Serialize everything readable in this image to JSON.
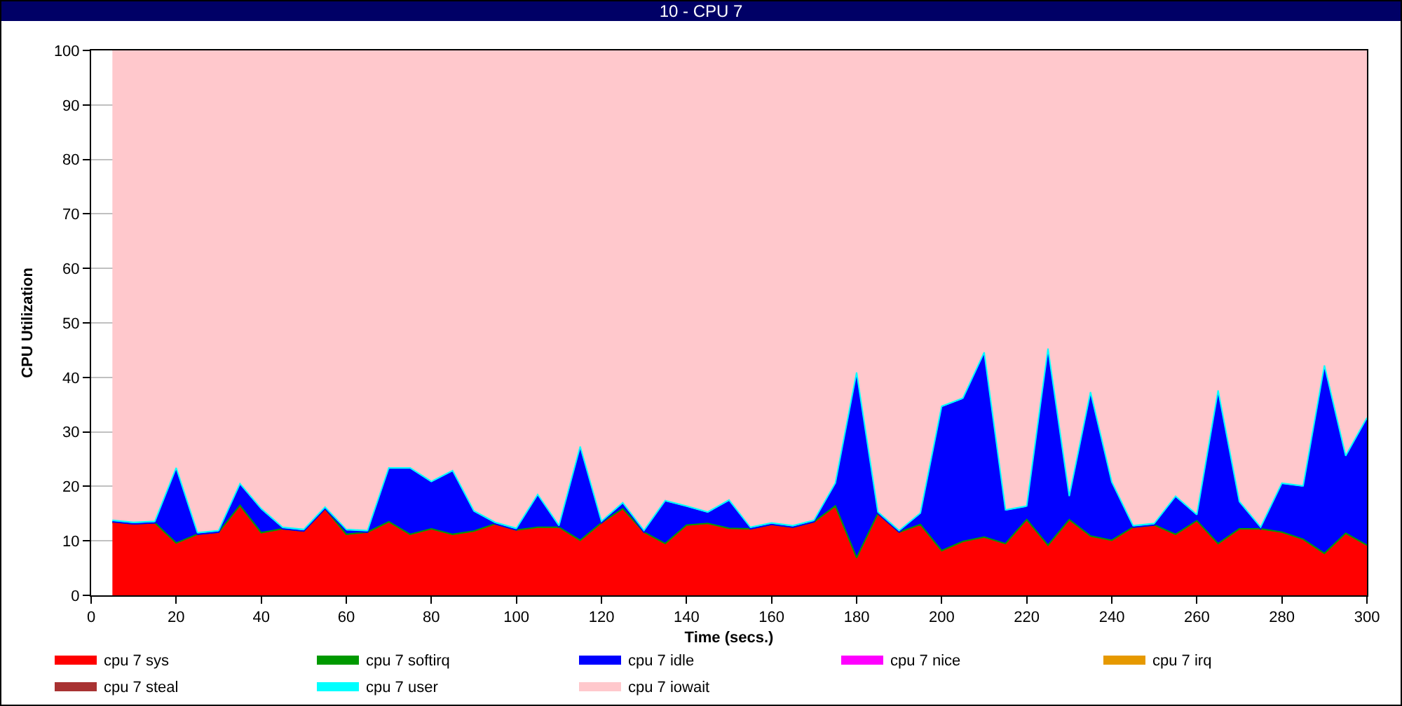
{
  "chart_data": {
    "type": "area",
    "title": "10 - CPU 7",
    "xlabel": "Time (secs.)",
    "ylabel": "CPU Utilization",
    "stacked": true,
    "x": [
      5,
      10,
      15,
      20,
      25,
      30,
      35,
      40,
      45,
      50,
      55,
      60,
      65,
      70,
      75,
      80,
      85,
      90,
      95,
      100,
      105,
      110,
      115,
      120,
      125,
      130,
      135,
      140,
      145,
      150,
      155,
      160,
      165,
      170,
      175,
      180,
      185,
      190,
      195,
      200,
      205,
      210,
      215,
      220,
      225,
      230,
      235,
      240,
      245,
      250,
      255,
      260,
      265,
      270,
      275,
      280,
      285,
      290,
      295,
      300
    ],
    "series": [
      {
        "name": "cpu 7 sys",
        "color": "#ff0000",
        "values": [
          13.3,
          12.9,
          13.1,
          9.4,
          11.0,
          11.4,
          16.3,
          11.3,
          12.0,
          11.6,
          15.7,
          11.0,
          11.4,
          13.3,
          11.0,
          12.0,
          11.0,
          11.6,
          12.9,
          11.8,
          12.3,
          12.3,
          9.9,
          13.1,
          15.7,
          11.4,
          9.3,
          12.7,
          13.0,
          12.1,
          12.0,
          12.8,
          12.3,
          13.3,
          16.2,
          6.7,
          14.8,
          11.4,
          12.8,
          8.0,
          9.7,
          10.5,
          9.3,
          13.7,
          9.0,
          13.7,
          10.7,
          9.9,
          12.3,
          12.7,
          11.0,
          13.5,
          9.3,
          12.0,
          12.0,
          11.4,
          10.1,
          7.5,
          11.2,
          9.0
        ]
      },
      {
        "name": "cpu 7 softirq",
        "color": "#009900",
        "values": [
          0.2,
          0.2,
          0.2,
          0.2,
          0.2,
          0.2,
          0.2,
          0.2,
          0.2,
          0.2,
          0.2,
          0.2,
          0.2,
          0.2,
          0.2,
          0.2,
          0.2,
          0.2,
          0.2,
          0.2,
          0.2,
          0.2,
          0.2,
          0.2,
          0.2,
          0.2,
          0.2,
          0.2,
          0.2,
          0.2,
          0.2,
          0.2,
          0.2,
          0.2,
          0.2,
          0.2,
          0.2,
          0.2,
          0.2,
          0.2,
          0.2,
          0.2,
          0.2,
          0.2,
          0.2,
          0.2,
          0.2,
          0.2,
          0.2,
          0.2,
          0.2,
          0.2,
          0.2,
          0.2,
          0.2,
          0.2,
          0.2,
          0.2,
          0.2,
          0.2
        ]
      },
      {
        "name": "cpu 7 idle",
        "color": "#0000ff",
        "values": [
          0,
          0,
          0,
          13.5,
          0,
          0,
          3.7,
          4.1,
          0,
          0,
          0,
          0.6,
          0,
          9.6,
          11.9,
          8.4,
          11.4,
          3.4,
          0,
          0,
          5.7,
          0,
          16.9,
          0,
          0.8,
          0,
          7.6,
          3.2,
          1.8,
          4.9,
          0,
          0,
          0,
          0,
          3.9,
          33.7,
          0,
          0,
          1.8,
          26.2,
          26.0,
          33.6,
          5.9,
          2.2,
          35.8,
          4.0,
          26.1,
          10.4,
          0,
          0,
          6.7,
          0.8,
          27.8,
          4.7,
          0,
          8.7,
          9.5,
          34.2,
          13.9,
          23.1
        ]
      },
      {
        "name": "cpu 7 nice",
        "color": "#ff00ff",
        "values": [
          null,
          null,
          null,
          null,
          null,
          null,
          null,
          null,
          null,
          null,
          null,
          null,
          null,
          null,
          null,
          null,
          null,
          null,
          null,
          null,
          null,
          null,
          null,
          null,
          null,
          null,
          null,
          null,
          null,
          null,
          null,
          null,
          null,
          null,
          null,
          null,
          null,
          null,
          null,
          null,
          null,
          null,
          null,
          null,
          null,
          null,
          null,
          null,
          null,
          null,
          null,
          null,
          null,
          null,
          null,
          null,
          null,
          null,
          null,
          null
        ]
      },
      {
        "name": "cpu 7 irq",
        "color": "#e69900",
        "values": [
          null,
          null,
          null,
          null,
          null,
          null,
          null,
          null,
          null,
          null,
          null,
          null,
          null,
          null,
          null,
          null,
          null,
          null,
          null,
          null,
          null,
          null,
          null,
          null,
          null,
          null,
          null,
          null,
          null,
          null,
          null,
          null,
          null,
          null,
          null,
          null,
          null,
          null,
          null,
          null,
          null,
          null,
          null,
          null,
          null,
          null,
          null,
          null,
          null,
          null,
          null,
          null,
          null,
          null,
          null,
          null,
          null,
          null,
          null,
          null
        ]
      },
      {
        "name": "cpu 7 steal",
        "color": "#a83232",
        "values": [
          null,
          null,
          null,
          null,
          null,
          null,
          null,
          null,
          null,
          null,
          null,
          null,
          null,
          null,
          null,
          null,
          null,
          null,
          null,
          null,
          null,
          null,
          null,
          null,
          null,
          null,
          null,
          null,
          null,
          null,
          null,
          null,
          null,
          null,
          null,
          null,
          null,
          null,
          null,
          null,
          null,
          null,
          null,
          null,
          null,
          null,
          null,
          null,
          null,
          null,
          null,
          null,
          null,
          null,
          null,
          null,
          null,
          null,
          null,
          null
        ]
      },
      {
        "name": "cpu 7 user",
        "color": "#00ffff",
        "values": [
          0.3,
          0.3,
          0.3,
          0.3,
          0.3,
          0.3,
          0.3,
          0.3,
          0.3,
          0.3,
          0.3,
          0.3,
          0.3,
          0.3,
          0.3,
          0.3,
          0.3,
          0.3,
          0.3,
          0.3,
          0.3,
          0.3,
          0.3,
          0.3,
          0.3,
          0.3,
          0.3,
          0.3,
          0.3,
          0.3,
          0.3,
          0.3,
          0.3,
          0.3,
          0.3,
          0.3,
          0.3,
          0.3,
          0.3,
          0.3,
          0.3,
          0.3,
          0.3,
          0.3,
          0.3,
          0.3,
          0.3,
          0.3,
          0.3,
          0.3,
          0.3,
          0.3,
          0.3,
          0.3,
          0.3,
          0.3,
          0.3,
          0.3,
          0.3,
          0.3
        ]
      },
      {
        "name": "cpu 7 iowait",
        "color": "#ffc8cc",
        "values": [
          86.2,
          86.6,
          86.4,
          76.6,
          88.5,
          88.1,
          79.5,
          84.1,
          87.5,
          87.9,
          83.8,
          87.9,
          88.1,
          76.6,
          76.6,
          79.1,
          77.1,
          84.5,
          86.6,
          87.7,
          81.5,
          87.2,
          72.7,
          86.4,
          83.0,
          88.1,
          82.6,
          83.6,
          84.7,
          82.5,
          87.5,
          86.7,
          87.2,
          86.2,
          79.4,
          59.1,
          84.7,
          88.1,
          84.9,
          65.3,
          63.8,
          55.4,
          84.3,
          83.6,
          54.7,
          81.8,
          62.7,
          79.2,
          87.2,
          86.8,
          81.8,
          85.2,
          62.4,
          82.8,
          87.5,
          79.4,
          79.9,
          57.8,
          74.4,
          67.4
        ]
      }
    ],
    "xlim": [
      0,
      300
    ],
    "xticks": [
      0,
      20,
      40,
      60,
      80,
      100,
      120,
      140,
      160,
      180,
      200,
      220,
      240,
      260,
      280,
      300
    ],
    "ylim": [
      0,
      100
    ],
    "yticks": [
      0,
      10,
      20,
      30,
      40,
      50,
      60,
      70,
      80,
      90,
      100
    ],
    "grid": "y",
    "legend": "bottom"
  }
}
